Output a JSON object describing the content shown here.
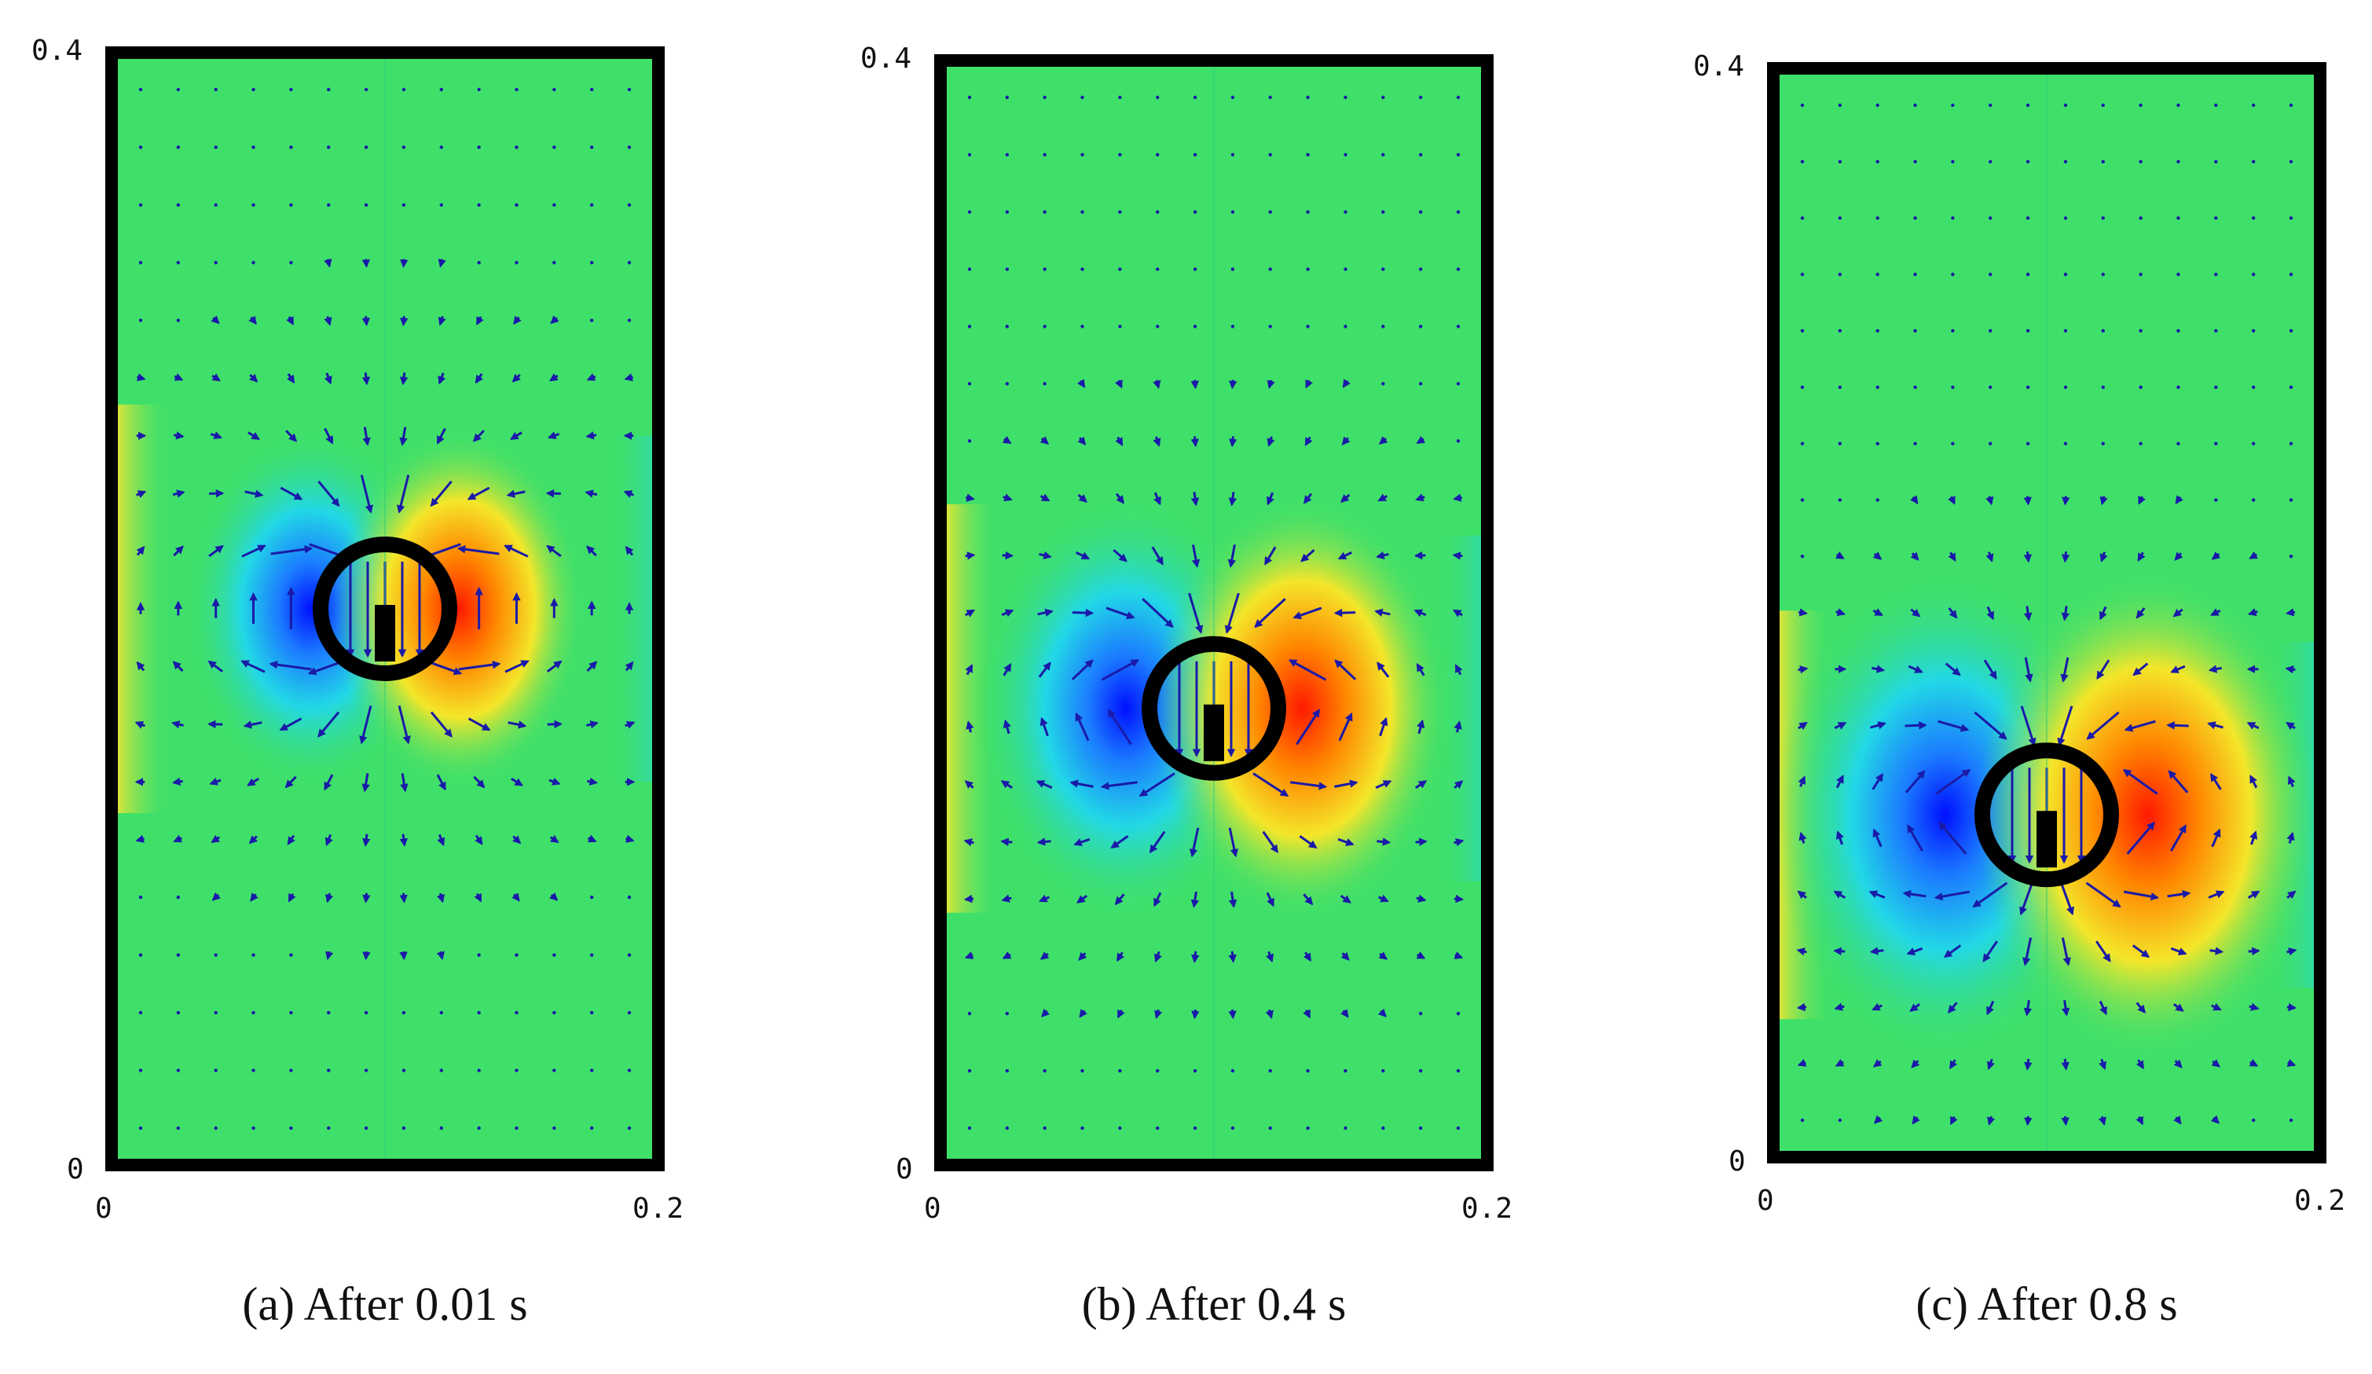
{
  "figure": {
    "panels": [
      {
        "id": "a",
        "caption": "(a) After 0.01 s",
        "time_s": 0.01,
        "x_ticks": [
          "0",
          "0.2"
        ],
        "y_ticks": [
          "0",
          "0.4"
        ],
        "x_range": [
          0,
          0.2
        ],
        "y_range": [
          0,
          0.4
        ],
        "object_center": [
          0.1,
          0.2
        ]
      },
      {
        "id": "b",
        "caption": "(b) After 0.4 s",
        "time_s": 0.4,
        "x_ticks": [
          "0",
          "0.2"
        ],
        "y_ticks": [
          "0",
          "0.4"
        ],
        "x_range": [
          0,
          0.2
        ],
        "y_range": [
          0,
          0.4
        ],
        "object_center": [
          0.1,
          0.165
        ]
      },
      {
        "id": "c",
        "caption": "(c) After 0.8 s",
        "time_s": 0.8,
        "x_ticks": [
          "0",
          "0.2"
        ],
        "y_ticks": [
          "0",
          "0.4"
        ],
        "x_range": [
          0,
          0.2
        ],
        "y_range": [
          0,
          0.4
        ],
        "object_center": [
          0.1,
          0.125
        ]
      }
    ],
    "colors": {
      "field_background": "#3fe06a",
      "negative_lobe": "#1c2fff",
      "positive_lobe": "#ff2a00",
      "arrow": "#1a1aa8",
      "frame": "#000000"
    }
  }
}
